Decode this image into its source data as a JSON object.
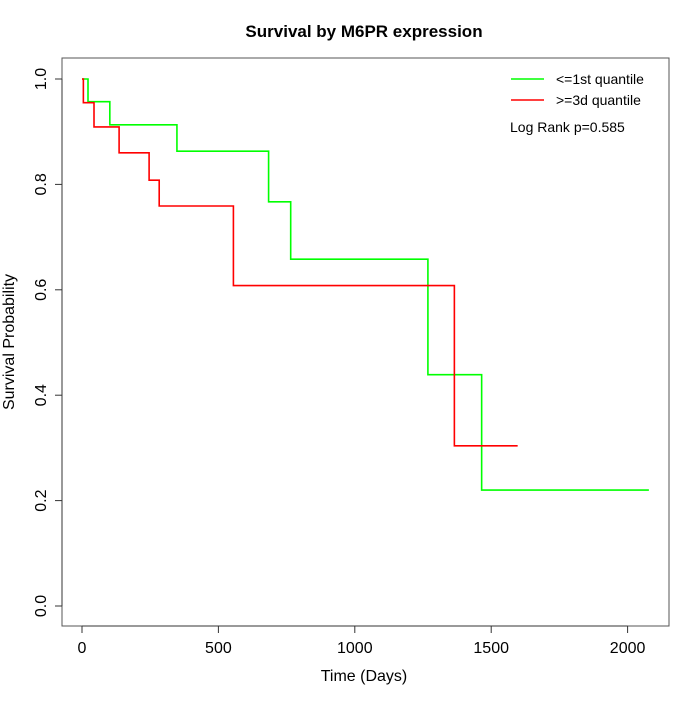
{
  "chart_data": {
    "type": "line",
    "subtype": "kaplan-meier step",
    "title": "Survival by M6PR expression",
    "xlabel": "Time (Days)",
    "ylabel": "Survival Probability",
    "xlim": [
      0,
      2100
    ],
    "ylim": [
      0,
      1
    ],
    "xticks": [
      0,
      500,
      1000,
      1500,
      2000
    ],
    "yticks": [
      0.0,
      0.2,
      0.4,
      0.6,
      0.8,
      1.0
    ],
    "xtick_labels": [
      "0",
      "500",
      "1000",
      "1500",
      "2000"
    ],
    "ytick_labels": [
      "0.0",
      "0.2",
      "0.4",
      "0.6",
      "0.8",
      "1.0"
    ],
    "grid": false,
    "legend_position": "top-right",
    "annotation": "Log Rank p=0.585",
    "series": [
      {
        "name": "<=1st quantile",
        "color": "#00ff00",
        "x": [
          0,
          22,
          102,
          348,
          684,
          765,
          1268,
          1465,
          2078
        ],
        "y": [
          1.0,
          0.957,
          0.913,
          0.863,
          0.767,
          0.658,
          0.439,
          0.22,
          0.22
        ]
      },
      {
        "name": ">=3d quantile",
        "color": "#ff0000",
        "x": [
          0,
          5,
          44,
          136,
          246,
          283,
          555,
          1365,
          1597
        ],
        "y": [
          1.0,
          0.955,
          0.909,
          0.86,
          0.808,
          0.759,
          0.608,
          0.304,
          0.304
        ]
      }
    ]
  }
}
